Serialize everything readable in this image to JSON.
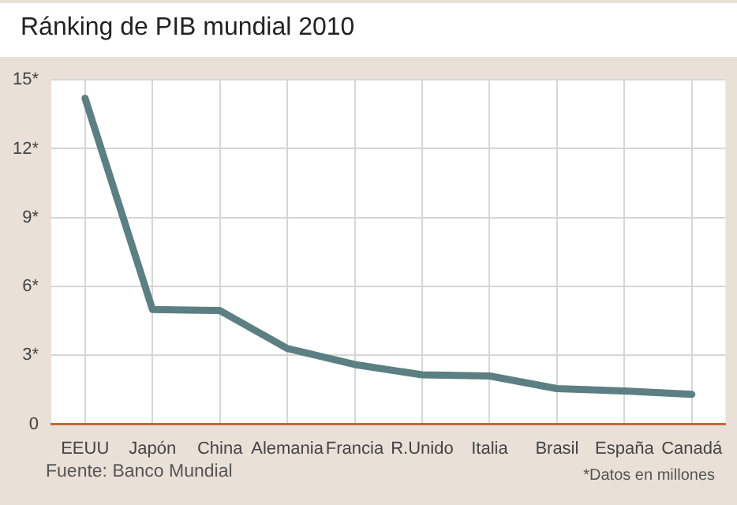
{
  "chart_data": {
    "type": "line",
    "title": "Ránking de PIB mundial 2010",
    "categories": [
      "EEUU",
      "Japón",
      "China",
      "Alemania",
      "Francia",
      "R.Unido",
      "Italia",
      "Brasil",
      "España",
      "Canadá"
    ],
    "series": [
      {
        "color": "#5b7f82",
        "values": [
          14.2,
          5.0,
          4.95,
          3.3,
          2.6,
          2.15,
          2.1,
          1.55,
          1.45,
          1.3
        ]
      }
    ],
    "ylim": [
      0,
      15
    ],
    "yticks": [
      0,
      {
        "value": 3,
        "label": "3*"
      },
      {
        "value": 6,
        "label": "6*"
      },
      {
        "value": 9,
        "label": "9*"
      },
      {
        "value": 12,
        "label": "12*"
      },
      {
        "value": 15,
        "label": "15*"
      }
    ],
    "grid": true,
    "legend": false,
    "marker": "none",
    "line_style": "solid",
    "annotations": [
      "Fuente: Banco Mundial",
      "*Datos en millones"
    ]
  }
}
